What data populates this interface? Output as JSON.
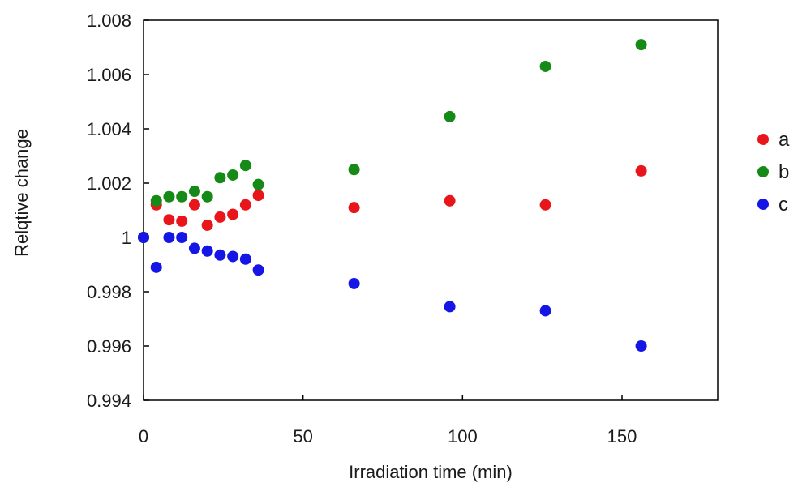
{
  "chart_data": {
    "type": "scatter",
    "title": "",
    "xlabel": "Irradiation time (min)",
    "ylabel": "Relqtive change",
    "xlim": [
      0,
      180
    ],
    "ylim": [
      0.994,
      1.008
    ],
    "xticks": [
      0,
      50,
      100,
      150
    ],
    "xtick_labels": [
      "0",
      "50",
      "100",
      "150"
    ],
    "yticks": [
      0.994,
      0.996,
      0.998,
      1,
      1.002,
      1.004,
      1.006,
      1.008
    ],
    "ytick_labels": [
      "0.994",
      "0.996",
      "0.998",
      "1",
      "1.002",
      "1.004",
      "1.006",
      "1.008"
    ],
    "grid": false,
    "legend_position": "right",
    "series": [
      {
        "name": "a",
        "color": "#e8161b",
        "points": [
          [
            0,
            1.0
          ],
          [
            4,
            1.0012
          ],
          [
            8,
            1.00065
          ],
          [
            12,
            1.0006
          ],
          [
            16,
            1.0012
          ],
          [
            20,
            1.00045
          ],
          [
            24,
            1.00075
          ],
          [
            28,
            1.00085
          ],
          [
            32,
            1.0012
          ],
          [
            36,
            1.00155
          ],
          [
            66,
            1.0011
          ],
          [
            96,
            1.00135
          ],
          [
            126,
            1.0012
          ],
          [
            156,
            1.00245
          ]
        ]
      },
      {
        "name": "b",
        "color": "#168a16",
        "points": [
          [
            0,
            1.0
          ],
          [
            4,
            1.00135
          ],
          [
            8,
            1.0015
          ],
          [
            12,
            1.0015
          ],
          [
            16,
            1.0017
          ],
          [
            20,
            1.0015
          ],
          [
            24,
            1.0022
          ],
          [
            28,
            1.0023
          ],
          [
            32,
            1.00265
          ],
          [
            36,
            1.00195
          ],
          [
            66,
            1.0025
          ],
          [
            96,
            1.00445
          ],
          [
            126,
            1.0063
          ],
          [
            156,
            1.0071
          ]
        ]
      },
      {
        "name": "c",
        "color": "#1515e6",
        "points": [
          [
            0,
            1.0
          ],
          [
            4,
            0.9989
          ],
          [
            8,
            1.0
          ],
          [
            12,
            1.0
          ],
          [
            16,
            0.9996
          ],
          [
            20,
            0.9995
          ],
          [
            24,
            0.99935
          ],
          [
            28,
            0.9993
          ],
          [
            32,
            0.9992
          ],
          [
            36,
            0.9988
          ],
          [
            66,
            0.9983
          ],
          [
            96,
            0.99745
          ],
          [
            126,
            0.9973
          ],
          [
            156,
            0.996
          ]
        ]
      }
    ]
  }
}
